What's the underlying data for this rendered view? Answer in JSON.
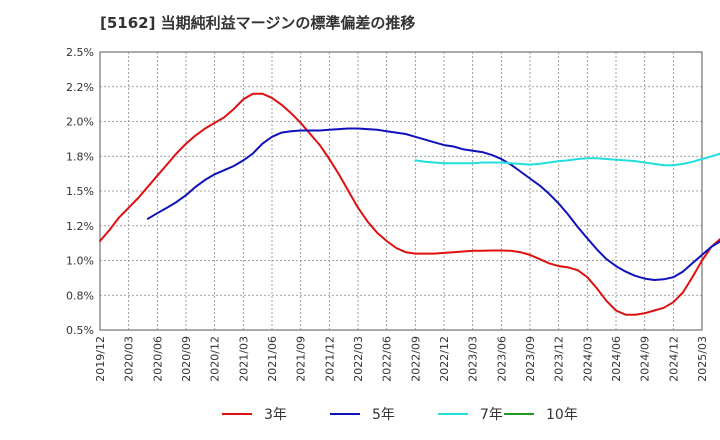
{
  "title": "[5162]  当期純利益マージンの標準偏差の推移",
  "chart_data": {
    "type": "line",
    "title": "[5162]  当期純利益マージンの標準偏差の推移",
    "xlabel": "",
    "ylabel": "",
    "ylim": [
      0.5,
      2.5
    ],
    "y_ticks": [
      "0.5%",
      "0.8%",
      "1.0%",
      "1.2%",
      "1.5%",
      "1.8%",
      "2.0%",
      "2.2%",
      "2.5%"
    ],
    "x_ticks": [
      "2019/12",
      "2020/03",
      "2020/06",
      "2020/09",
      "2020/12",
      "2021/03",
      "2021/06",
      "2021/09",
      "2021/12",
      "2022/03",
      "2022/06",
      "2022/09",
      "2022/12",
      "2023/03",
      "2023/06",
      "2023/09",
      "2023/12",
      "2024/03",
      "2024/06",
      "2024/09",
      "2024/12",
      "2025/03"
    ],
    "grid": true,
    "legend_position": "bottom",
    "series": [
      {
        "name": "3年",
        "color": "#dd1111",
        "points": [
          [
            0,
            1.14
          ],
          [
            1,
            1.22
          ],
          [
            2,
            1.31
          ],
          [
            3,
            1.38
          ],
          [
            4,
            1.45
          ],
          [
            5,
            1.53
          ],
          [
            6,
            1.61
          ],
          [
            7,
            1.69
          ],
          [
            8,
            1.77
          ],
          [
            9,
            1.84
          ],
          [
            10,
            1.9
          ],
          [
            11,
            1.95
          ],
          [
            12,
            1.99
          ],
          [
            13,
            2.03
          ],
          [
            14,
            2.09
          ],
          [
            15,
            2.16
          ],
          [
            16,
            2.2
          ],
          [
            17,
            2.2
          ],
          [
            18,
            2.17
          ],
          [
            19,
            2.12
          ],
          [
            20,
            2.06
          ],
          [
            21,
            1.99
          ],
          [
            22,
            1.91
          ],
          [
            23,
            1.83
          ],
          [
            24,
            1.73
          ],
          [
            25,
            1.62
          ],
          [
            26,
            1.5
          ],
          [
            27,
            1.38
          ],
          [
            28,
            1.28
          ],
          [
            29,
            1.2
          ],
          [
            30,
            1.14
          ],
          [
            31,
            1.09
          ],
          [
            32,
            1.06
          ],
          [
            33,
            1.05
          ],
          [
            34,
            1.05
          ],
          [
            35,
            1.05
          ],
          [
            36,
            1.055
          ],
          [
            37,
            1.06
          ],
          [
            38,
            1.065
          ],
          [
            39,
            1.07
          ],
          [
            40,
            1.07
          ],
          [
            41,
            1.072
          ],
          [
            42,
            1.072
          ],
          [
            43,
            1.07
          ],
          [
            44,
            1.06
          ],
          [
            45,
            1.04
          ],
          [
            46,
            1.01
          ],
          [
            47,
            0.98
          ],
          [
            48,
            0.96
          ],
          [
            49,
            0.95
          ],
          [
            50,
            0.93
          ],
          [
            51,
            0.88
          ],
          [
            52,
            0.8
          ],
          [
            53,
            0.71
          ],
          [
            54,
            0.64
          ],
          [
            55,
            0.61
          ],
          [
            56,
            0.61
          ],
          [
            57,
            0.62
          ],
          [
            58,
            0.64
          ],
          [
            59,
            0.66
          ],
          [
            60,
            0.7
          ],
          [
            61,
            0.77
          ],
          [
            62,
            0.88
          ],
          [
            63,
            1.0
          ],
          [
            64,
            1.1
          ],
          [
            65,
            1.16
          ]
        ]
      },
      {
        "name": "5年",
        "color": "#1111bb",
        "points": [
          [
            5,
            1.3
          ],
          [
            6,
            1.34
          ],
          [
            7,
            1.38
          ],
          [
            8,
            1.42
          ],
          [
            9,
            1.47
          ],
          [
            10,
            1.53
          ],
          [
            11,
            1.58
          ],
          [
            12,
            1.62
          ],
          [
            13,
            1.65
          ],
          [
            14,
            1.68
          ],
          [
            15,
            1.72
          ],
          [
            16,
            1.77
          ],
          [
            17,
            1.84
          ],
          [
            18,
            1.89
          ],
          [
            19,
            1.92
          ],
          [
            20,
            1.93
          ],
          [
            21,
            1.935
          ],
          [
            22,
            1.935
          ],
          [
            23,
            1.935
          ],
          [
            24,
            1.94
          ],
          [
            25,
            1.945
          ],
          [
            26,
            1.95
          ],
          [
            27,
            1.95
          ],
          [
            28,
            1.945
          ],
          [
            29,
            1.94
          ],
          [
            30,
            1.93
          ],
          [
            31,
            1.92
          ],
          [
            32,
            1.91
          ],
          [
            33,
            1.89
          ],
          [
            34,
            1.87
          ],
          [
            35,
            1.85
          ],
          [
            36,
            1.83
          ],
          [
            37,
            1.82
          ],
          [
            38,
            1.8
          ],
          [
            39,
            1.79
          ],
          [
            40,
            1.78
          ],
          [
            41,
            1.76
          ],
          [
            42,
            1.73
          ],
          [
            43,
            1.69
          ],
          [
            44,
            1.64
          ],
          [
            45,
            1.59
          ],
          [
            46,
            1.54
          ],
          [
            47,
            1.48
          ],
          [
            48,
            1.41
          ],
          [
            49,
            1.33
          ],
          [
            50,
            1.24
          ],
          [
            51,
            1.16
          ],
          [
            52,
            1.08
          ],
          [
            53,
            1.01
          ],
          [
            54,
            0.96
          ],
          [
            55,
            0.92
          ],
          [
            56,
            0.89
          ],
          [
            57,
            0.87
          ],
          [
            58,
            0.86
          ],
          [
            59,
            0.865
          ],
          [
            60,
            0.88
          ],
          [
            61,
            0.92
          ],
          [
            62,
            0.98
          ],
          [
            63,
            1.04
          ],
          [
            64,
            1.1
          ],
          [
            65,
            1.14
          ]
        ]
      },
      {
        "name": "7年",
        "color": "#22dddd",
        "points": [
          [
            33,
            1.72
          ],
          [
            34,
            1.71
          ],
          [
            35,
            1.705
          ],
          [
            36,
            1.7
          ],
          [
            37,
            1.7
          ],
          [
            38,
            1.7
          ],
          [
            39,
            1.7
          ],
          [
            40,
            1.705
          ],
          [
            41,
            1.705
          ],
          [
            42,
            1.705
          ],
          [
            43,
            1.7
          ],
          [
            44,
            1.695
          ],
          [
            45,
            1.69
          ],
          [
            46,
            1.695
          ],
          [
            47,
            1.705
          ],
          [
            48,
            1.715
          ],
          [
            49,
            1.72
          ],
          [
            50,
            1.73
          ],
          [
            51,
            1.735
          ],
          [
            52,
            1.735
          ],
          [
            53,
            1.73
          ],
          [
            54,
            1.725
          ],
          [
            55,
            1.72
          ],
          [
            56,
            1.715
          ],
          [
            57,
            1.705
          ],
          [
            58,
            1.695
          ],
          [
            59,
            1.685
          ],
          [
            60,
            1.685
          ],
          [
            61,
            1.695
          ],
          [
            62,
            1.71
          ],
          [
            63,
            1.73
          ],
          [
            64,
            1.75
          ],
          [
            65,
            1.77
          ]
        ]
      },
      {
        "name": "10年",
        "color": "#229922",
        "points": []
      }
    ]
  }
}
